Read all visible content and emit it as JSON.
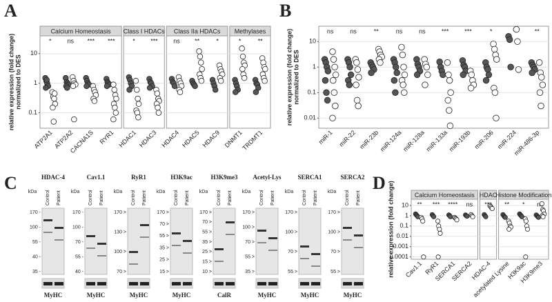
{
  "chart_data": [
    {
      "type": "dot",
      "panel": "A",
      "y_label": [
        "relative expression (fold change)",
        "normalized to DES"
      ],
      "log_scale": true,
      "ylim": [
        0.03,
        40
      ],
      "yticks": [
        0.1,
        1,
        10
      ],
      "grid": true,
      "control_color": "#555555",
      "patient_color": "#ffffff",
      "facets": [
        {
          "title": "Calcium Homeostasis",
          "groups": [
            {
              "label": "ATP2A1",
              "significance": "*",
              "control": [
                1.5,
                1.2,
                1,
                0.8,
                0.7,
                1.3
              ],
              "patient": [
                0.5,
                0.35,
                0.3,
                0.2,
                0.15,
                0.05,
                0.45
              ]
            },
            {
              "label": "ATP2A2",
              "significance": "ns",
              "control": [
                1.5,
                1.1,
                1,
                0.9,
                0.8,
                0.7
              ],
              "patient": [
                1.6,
                1.2,
                1,
                0.9,
                0.8,
                0.06
              ]
            },
            {
              "label": "CACNA1S",
              "significance": "***",
              "control": [
                1.5,
                1.2,
                1,
                0.9,
                0.8
              ],
              "patient": [
                0.8,
                0.6,
                0.5,
                0.4,
                0.3,
                0.25
              ]
            },
            {
              "label": "RYR1",
              "significance": "***",
              "control": [
                1.4,
                1.1,
                1,
                0.9,
                0.8
              ],
              "patient": [
                0.9,
                0.6,
                0.4,
                0.3,
                0.2,
                0.15,
                0.1,
                0.06
              ]
            }
          ]
        },
        {
          "title": "Class I HDACs",
          "groups": [
            {
              "label": "HDAC1",
              "significance": "*",
              "control": [
                1.6,
                1.3,
                1,
                0.8,
                0.6
              ],
              "patient": [
                1.2,
                0.6,
                0.3,
                0.2,
                0.12,
                0.1,
                0.07
              ]
            },
            {
              "label": "HDAC3",
              "significance": "***",
              "control": [
                1.4,
                1.1,
                1,
                0.8,
                0.7
              ],
              "patient": [
                0.6,
                0.45,
                0.3,
                0.25,
                0.2,
                0.15,
                0.1
              ]
            }
          ]
        },
        {
          "title": "Class IIa HDACs",
          "groups": [
            {
              "label": "HDAC4",
              "significance": "ns",
              "control": [
                1.4,
                1.1,
                1,
                0.8
              ],
              "patient": [
                1.6,
                1.2,
                1,
                0.8,
                0.6,
                0.5
              ]
            },
            {
              "label": "HDAC5",
              "significance": "**",
              "control": [
                1.2,
                1,
                0.9,
                0.8
              ],
              "patient": [
                12,
                8,
                5,
                3,
                2,
                1.5,
                1.2
              ]
            },
            {
              "label": "HDAC9",
              "significance": "*",
              "control": [
                1.3,
                1,
                0.8,
                0.6
              ],
              "patient": [
                4,
                3,
                2.5,
                2,
                1.5,
                1.2
              ]
            }
          ]
        },
        {
          "title": "Methylases",
          "groups": [
            {
              "label": "DNMT1",
              "significance": "*",
              "control": [
                1.3,
                1,
                0.8,
                0.6,
                0.5
              ],
              "patient": [
                15,
                8,
                5,
                4,
                3,
                2,
                1.5
              ]
            },
            {
              "label": "TRDMT1",
              "significance": "**",
              "control": [
                1.3,
                1,
                0.9,
                0.7,
                0.5
              ],
              "patient": [
                7,
                5,
                3.5,
                3,
                2,
                1.5,
                1.2
              ]
            }
          ]
        }
      ]
    },
    {
      "type": "dot",
      "panel": "B",
      "y_label": [
        "relative expression (fold change)",
        "normalized to DES"
      ],
      "log_scale": true,
      "ylim": [
        0.004,
        40
      ],
      "yticks": [
        0.01,
        0.1,
        1,
        10
      ],
      "grid": true,
      "control_color": "#555555",
      "patient_color": "#ffffff",
      "facets": [
        {
          "groups": [
            {
              "label": "miR-1",
              "significance": "ns",
              "control": [
                2,
                1.5,
                1,
                0.7,
                0.3,
                0.1,
                0.05
              ],
              "patient": [
                4,
                2,
                1,
                0.5,
                0.3,
                0.1,
                0.03,
                0.01
              ]
            },
            {
              "label": "miR-22",
              "significance": "ns",
              "control": [
                2,
                1.5,
                1,
                0.5,
                0.3,
                0.2
              ],
              "patient": [
                2,
                1.5,
                0.8,
                0.4,
                0.2,
                0.05,
                0.03
              ]
            },
            {
              "label": "miR-23b",
              "significance": "**",
              "control": [
                1.5,
                1.2,
                1,
                0.8,
                0.6
              ],
              "patient": [
                5,
                4,
                3,
                2.5,
                2,
                1.5
              ]
            },
            {
              "label": "miR-124a",
              "significance": "ns",
              "control": [
                2,
                1.5,
                1,
                0.6,
                0.3,
                0.1
              ],
              "patient": [
                6,
                3,
                1,
                0.5,
                0.3,
                0.2,
                0.1
              ]
            },
            {
              "label": "miR-128a",
              "significance": "ns",
              "control": [
                2,
                1.3,
                1,
                0.7,
                0.5
              ],
              "patient": [
                2,
                1.3,
                1,
                0.5,
                0.2
              ]
            },
            {
              "label": "miR-133a",
              "significance": "***",
              "control": [
                1.6,
                1,
                0.7,
                0.5
              ],
              "patient": [
                1.5,
                0.5,
                0.3,
                0.1,
                0.05,
                0.02,
                0.005
              ]
            },
            {
              "label": "miR-193b",
              "significance": "***",
              "control": [
                1.8,
                1.2,
                1,
                0.7,
                0.5
              ],
              "patient": [
                0.7,
                0.5,
                0.3,
                0.2,
                0.15
              ]
            },
            {
              "label": "miR-206",
              "significance": "*",
              "control": [
                1.5,
                1,
                0.8,
                0.5,
                0.3
              ],
              "patient": [
                8,
                5,
                3,
                2,
                0.15,
                0.1,
                0.01
              ]
            },
            {
              "label": "miR-224",
              "significance": "*",
              "control": [
                16,
                12,
                1
              ],
              "patient": [
                30,
                10,
                0.8
              ]
            },
            {
              "label": "miR-486-3p",
              "significance": "**",
              "control": [
                1.5,
                1.2,
                1,
                0.8,
                0.6
              ],
              "patient": [
                1.5,
                0.6,
                0.4,
                0.2,
                0.1,
                0.03
              ]
            }
          ]
        }
      ]
    },
    {
      "type": "dot",
      "panel": "D",
      "y_label": [
        "relative expression (fold change)"
      ],
      "log_scale": true,
      "ylim": [
        6e-05,
        40
      ],
      "yticks": [
        0.0001,
        0.001,
        0.01,
        0.1,
        1,
        10
      ],
      "grid": true,
      "control_color": "#555555",
      "patient_color": "#ffffff",
      "facets": [
        {
          "title": "Calcium Homeostasis",
          "groups": [
            {
              "label": "Cav1.1",
              "significance": "**",
              "control": [
                1.5,
                1.2,
                1,
                0.8
              ],
              "patient": [
                0.7,
                0.5,
                0.3,
                0.0001
              ]
            },
            {
              "label": "RyR1",
              "significance": "***",
              "control": [
                1.3,
                1,
                0.8
              ],
              "patient": [
                0.3,
                0.1,
                0.05,
                0.02,
                0.0001
              ]
            },
            {
              "label": "SERCA1",
              "significance": "****",
              "control": [
                1.2,
                1,
                0.8
              ],
              "patient": [
                0.7,
                0.6,
                0.5,
                0.4
              ]
            },
            {
              "label": "SERCA2",
              "significance": "ns",
              "control": [
                1.2,
                1,
                0.9
              ],
              "patient": [
                1.3,
                1,
                0.8
              ]
            }
          ]
        },
        {
          "title": "HDAC",
          "groups": [
            {
              "label": "HDAC-4",
              "significance": "***",
              "control": [
                1.3,
                1,
                0.8
              ],
              "patient": [
                10,
                8,
                6,
                5
              ]
            }
          ]
        },
        {
          "title": "Histone Modification",
          "groups": [
            {
              "label": "acetylated Lysine",
              "significance": "**",
              "control": [
                1.3,
                1,
                0.8,
                0.7
              ],
              "patient": [
                0.3,
                0.2,
                0.1,
                0.08,
                0.05
              ]
            },
            {
              "label": "H3K9ac",
              "significance": "*",
              "control": [
                1.5,
                1.2,
                1,
                0.8
              ],
              "patient": [
                0.5,
                0.3,
                0.1,
                0.05,
                0.0001
              ]
            },
            {
              "label": "H3K9me3",
              "significance": "ns",
              "control": [
                1.2,
                1,
                0.8,
                0.7
              ],
              "patient": [
                15,
                4,
                3,
                1.5,
                1,
                0.8
              ]
            }
          ]
        }
      ]
    }
  ],
  "blot_panel": {
    "panel": "C",
    "unit": "kDa",
    "lane_labels": [
      "Control",
      "Patient"
    ],
    "blots": [
      {
        "title": "HDAC-4",
        "markers": [
          "170 -",
          "100 -",
          "55 -",
          "40 -",
          "35 -"
        ],
        "loading": "MyHC"
      },
      {
        "title": "Cav1.1",
        "markers": [
          "170 -",
          "100 -",
          "70 -",
          "55 -",
          "40 -"
        ],
        "loading": "MyHC"
      },
      {
        "title": "RyR1",
        "markers": [
          "170 >",
          "130 >",
          "100 >",
          "70 >"
        ],
        "loading": "MyHC"
      },
      {
        "title": "H3K9ac",
        "markers": [
          "170 >",
          "70 >",
          "55 >",
          "35 >",
          "25 >",
          "15 >"
        ],
        "loading": "MyHC"
      },
      {
        "title": "H3K9me3",
        "markers": [
          "170 >",
          "70 >",
          "55 >",
          "35 >",
          "25 >",
          "15 >",
          "10 >"
        ],
        "loading": "CalR"
      },
      {
        "title": "Acetyl-Lys",
        "markers": [
          "170 >",
          "100 >",
          "70 >",
          "55 >",
          "35 >"
        ],
        "loading": "MyHC"
      },
      {
        "title": "SERCA1",
        "markers": [
          "170 >",
          "100 >",
          "70 >",
          "55 >"
        ],
        "loading": "MyHC"
      },
      {
        "title": "SERCA2",
        "markers": [
          "170 >",
          "100 >",
          "70 >",
          "55 >"
        ],
        "loading": "MyHC"
      }
    ]
  }
}
